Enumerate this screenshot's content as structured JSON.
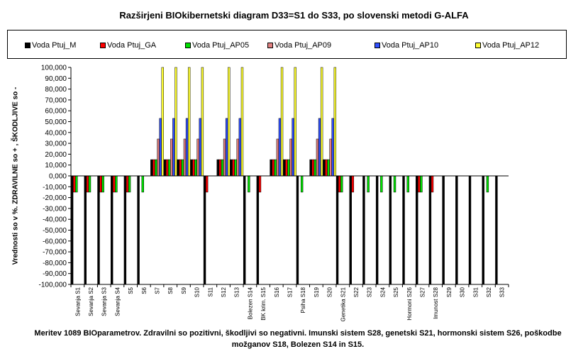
{
  "chart_data": {
    "type": "bar",
    "title": "Razširjeni BIOkibernetski diagram  D33=S1 do S33, po slovenski metodi G-ALFA",
    "ylabel": "Vrednosti so v %. ZDRAVILNE so + , ŠKODLJIVE so -",
    "xlabel": "Meritev 1089 BIOparametrov. Zdravilni so pozitivni, škodljivi so negativni. Imunski sistem S28, genetski S21, hormonski sistem S26, poškodbe možganov S18, Bolezen S14 in S15.",
    "ylim": [
      -100000,
      100000
    ],
    "yticks": [
      -100000,
      -90000,
      -80000,
      -70000,
      -60000,
      -50000,
      -40000,
      -30000,
      -20000,
      -10000,
      0,
      10000,
      20000,
      30000,
      40000,
      50000,
      60000,
      70000,
      80000,
      90000,
      100000
    ],
    "ytick_labels": [
      "-100,000",
      "-90,000",
      "-80,000",
      "-70,000",
      "-60,000",
      "-50,000",
      "-40,000",
      "-30,000",
      "-20,000",
      "-10,000",
      "0,000",
      "10,000",
      "20,000",
      "30,000",
      "40,000",
      "50,000",
      "60,000",
      "70,000",
      "80,000",
      "90,000",
      "100,000"
    ],
    "grid": false,
    "legend_position": "top",
    "categories": [
      "Sevanja S1",
      "Sevanja S2",
      "Sevanja S3",
      "Sevanja S4",
      "S5",
      "S6",
      "S7",
      "S8",
      "S9",
      "S10",
      "S11",
      "S12",
      "S13",
      "Bolezen S14",
      "BK krim. S15",
      "S16",
      "S17",
      "Psiha S18",
      "S19",
      "S20",
      "Genetika S21",
      "S22",
      "S23",
      "S24",
      "S25",
      "Hormoni S26",
      "S27",
      "Imunost S28",
      "S29",
      "S30",
      "S31",
      "S32",
      "S33"
    ],
    "series": [
      {
        "name": "Voda Ptuj_M",
        "color": "#000000",
        "values": [
          -100000,
          -100000,
          -100000,
          -100000,
          -100000,
          -100000,
          15000,
          15000,
          15000,
          15000,
          -100000,
          15000,
          15000,
          -100000,
          -100000,
          15000,
          15000,
          -100000,
          15000,
          15000,
          -100000,
          -100000,
          -100000,
          -100000,
          -100000,
          -100000,
          -100000,
          -100000,
          -100000,
          -100000,
          -100000,
          -100000,
          -100000
        ]
      },
      {
        "name": "Voda Ptuj_GA",
        "color": "#ff0000",
        "values": [
          -15000,
          -15000,
          -15000,
          -15000,
          -15000,
          0,
          15000,
          15000,
          15000,
          15000,
          -15000,
          15000,
          15000,
          0,
          -15000,
          15000,
          15000,
          0,
          15000,
          15000,
          -15000,
          -15000,
          0,
          0,
          0,
          0,
          -15000,
          -15000,
          0,
          0,
          0,
          0,
          0
        ]
      },
      {
        "name": "Voda Ptuj_AP05",
        "color": "#00e000",
        "values": [
          -15000,
          -15000,
          -15000,
          -15000,
          -15000,
          -15000,
          15000,
          15000,
          15000,
          15000,
          0,
          15000,
          15000,
          -15000,
          0,
          15000,
          15000,
          -15000,
          15000,
          15000,
          -15000,
          0,
          -15000,
          -15000,
          -15000,
          -15000,
          -15000,
          0,
          0,
          0,
          0,
          -15000,
          0
        ]
      },
      {
        "name": "Voda Ptuj_AP09",
        "color": "#e08080",
        "values": [
          0,
          0,
          0,
          0,
          0,
          0,
          34000,
          34000,
          34000,
          34000,
          0,
          34000,
          34000,
          0,
          0,
          34000,
          34000,
          0,
          34000,
          34000,
          0,
          0,
          0,
          0,
          0,
          0,
          0,
          0,
          0,
          0,
          0,
          0,
          0
        ]
      },
      {
        "name": "Voda Ptuj_AP10",
        "color": "#3050ff",
        "values": [
          0,
          0,
          0,
          0,
          0,
          0,
          53000,
          53000,
          53000,
          53000,
          0,
          53000,
          53000,
          0,
          0,
          53000,
          53000,
          0,
          53000,
          53000,
          0,
          0,
          0,
          0,
          0,
          0,
          0,
          0,
          0,
          0,
          0,
          0,
          0
        ]
      },
      {
        "name": "Voda Ptuj_AP12",
        "color": "#ffff33",
        "values": [
          0,
          0,
          0,
          0,
          0,
          0,
          100000,
          100000,
          100000,
          100000,
          0,
          100000,
          100000,
          0,
          0,
          100000,
          100000,
          0,
          100000,
          100000,
          0,
          0,
          0,
          0,
          0,
          0,
          0,
          0,
          0,
          0,
          0,
          0,
          0
        ]
      }
    ]
  }
}
